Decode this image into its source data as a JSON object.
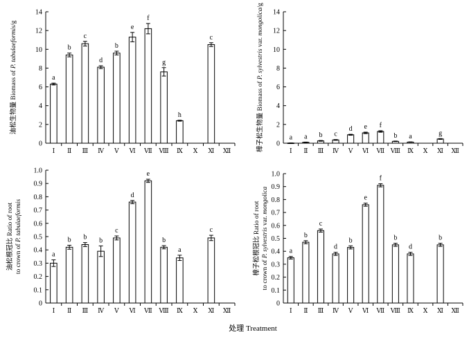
{
  "chart_data": [
    {
      "type": "bar",
      "id": "top-left",
      "ylabel_cn": "油松生物量",
      "ylabel_en": "Biomass of ",
      "ylabel_species": "P. tabulaeformis",
      "ylabel_unit": "/g",
      "ylim": [
        0,
        14
      ],
      "yticks": [
        "0",
        "2",
        "4",
        "6",
        "8",
        "10",
        "12",
        "14"
      ],
      "categories": [
        "Ⅰ",
        "Ⅱ",
        "Ⅲ",
        "Ⅳ",
        "Ⅴ",
        "Ⅵ",
        "Ⅶ",
        "Ⅷ",
        "Ⅸ",
        "Ⅹ",
        "Ⅺ",
        "Ⅻ"
      ],
      "values": [
        6.3,
        9.4,
        10.6,
        8.1,
        9.6,
        11.3,
        12.2,
        7.6,
        2.4,
        null,
        10.5,
        null
      ],
      "errors": [
        0.1,
        0.2,
        0.25,
        0.15,
        0.2,
        0.5,
        0.55,
        0.45,
        0.05,
        null,
        0.2,
        null
      ],
      "letters": [
        "a",
        "b",
        "c",
        "d",
        "b",
        "e",
        "f",
        "g",
        "h",
        "",
        "c",
        ""
      ]
    },
    {
      "type": "bar",
      "id": "top-right",
      "ylabel_cn": "樟子松生物量",
      "ylabel_en": "Biomass of ",
      "ylabel_species": "P. sylvestris",
      "ylabel_var": " var. ",
      "ylabel_species2": "mongolica",
      "ylabel_unit": "/g",
      "ylim": [
        0,
        14
      ],
      "yticks": [
        "0",
        "2",
        "4",
        "6",
        "8",
        "10",
        "12",
        "14"
      ],
      "categories": [
        "Ⅰ",
        "Ⅱ",
        "Ⅲ",
        "Ⅳ",
        "Ⅴ",
        "Ⅵ",
        "Ⅶ",
        "Ⅷ",
        "Ⅸ",
        "Ⅹ",
        "Ⅺ",
        "Ⅻ"
      ],
      "values": [
        0.02,
        0.1,
        0.25,
        0.35,
        0.9,
        1.1,
        1.25,
        0.2,
        0.12,
        null,
        0.45,
        null
      ],
      "errors": [
        0.01,
        0.02,
        0.04,
        0.04,
        0.05,
        0.08,
        0.08,
        0.03,
        0.02,
        null,
        0.04,
        null
      ],
      "letters": [
        "a",
        "a",
        "b",
        "c",
        "d",
        "e",
        "f",
        "b",
        "a",
        "",
        "g",
        ""
      ]
    },
    {
      "type": "bar",
      "id": "bottom-left",
      "ylabel_line1": "油松根冠比 Ratio of root",
      "ylabel_line2_pre": "to crown of ",
      "ylabel_species": "P. tabulaeformis",
      "ylim": [
        0,
        1.0
      ],
      "yticks": [
        "0",
        "0.1",
        "0.2",
        "0.3",
        "0.4",
        "0.5",
        "0.6",
        "0.7",
        "0.8",
        "0.9",
        "1.0"
      ],
      "categories": [
        "Ⅰ",
        "Ⅱ",
        "Ⅲ",
        "Ⅳ",
        "Ⅴ",
        "Ⅵ",
        "Ⅶ",
        "Ⅷ",
        "Ⅸ",
        "Ⅹ",
        "Ⅺ",
        "Ⅻ"
      ],
      "values": [
        0.3,
        0.42,
        0.44,
        0.39,
        0.49,
        0.76,
        0.92,
        0.42,
        0.34,
        null,
        0.49,
        null
      ],
      "errors": [
        0.025,
        0.015,
        0.015,
        0.04,
        0.015,
        0.012,
        0.012,
        0.012,
        0.02,
        null,
        0.02,
        null
      ],
      "letters": [
        "a",
        "b",
        "b",
        "b",
        "c",
        "d",
        "e",
        "b",
        "a",
        "",
        "c",
        ""
      ]
    },
    {
      "type": "bar",
      "id": "bottom-right",
      "ylabel_line1": "樟子松根冠比 Ratio of root",
      "ylabel_line2_pre": "to crown of ",
      "ylabel_species": "P. sylvestris",
      "ylabel_var": " var. ",
      "ylabel_species2": "mongolica",
      "ylim": [
        0,
        1.0
      ],
      "yticks": [
        "0",
        "0.1",
        "0.2",
        "0.3",
        "0.4",
        "0.5",
        "0.6",
        "0.7",
        "0.8",
        "0.9",
        "1.0"
      ],
      "categories": [
        "Ⅰ",
        "Ⅱ",
        "Ⅲ",
        "Ⅳ",
        "Ⅴ",
        "Ⅵ",
        "Ⅶ",
        "Ⅷ",
        "Ⅸ",
        "Ⅹ",
        "Ⅺ",
        "Ⅻ"
      ],
      "values": [
        0.35,
        0.47,
        0.56,
        0.38,
        0.43,
        0.76,
        0.91,
        0.45,
        0.38,
        null,
        0.45,
        null
      ],
      "errors": [
        0.01,
        0.012,
        0.012,
        0.012,
        0.012,
        0.012,
        0.012,
        0.012,
        0.012,
        null,
        0.012,
        null
      ],
      "letters": [
        "a",
        "b",
        "c",
        "d",
        "b",
        "e",
        "f",
        "b",
        "d",
        "",
        "b",
        ""
      ]
    }
  ],
  "xlabel": "处理 Treatment"
}
